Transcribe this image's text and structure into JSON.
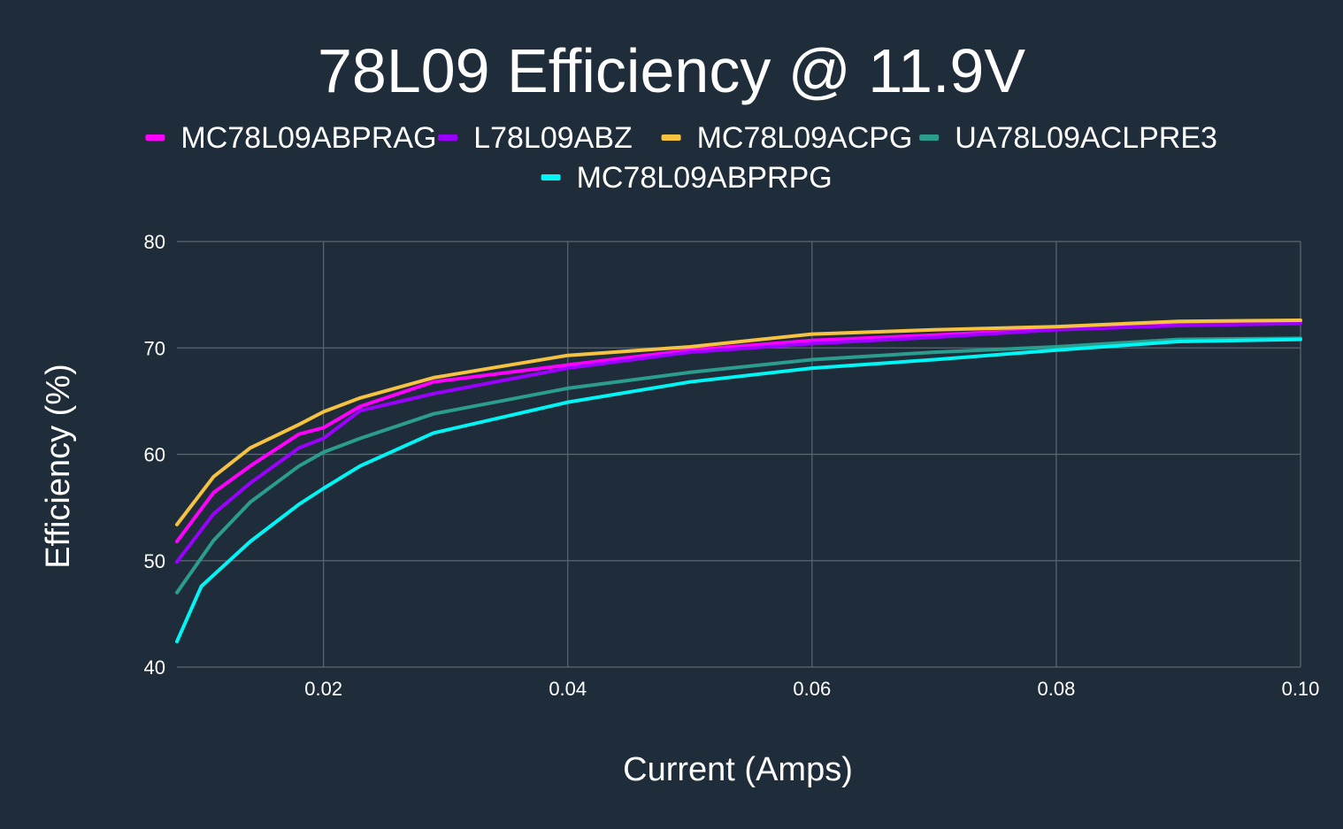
{
  "chart_data": {
    "type": "line",
    "title": "78L09 Efficiency @ 11.9V",
    "xlabel": "Current (Amps)",
    "ylabel": "Efficiency (%)",
    "xlim": [
      0.008,
      0.1
    ],
    "ylim": [
      40,
      80
    ],
    "x_ticks": [
      0.02,
      0.04,
      0.06,
      0.08,
      0.1
    ],
    "x_tick_labels": [
      "0.02",
      "0.04",
      "0.06",
      "0.08",
      "0.10"
    ],
    "y_ticks": [
      40,
      50,
      60,
      70,
      80
    ],
    "y_tick_labels": [
      "40",
      "50",
      "60",
      "70",
      "80"
    ],
    "grid": true,
    "legend_position": "top",
    "background": "#1f2d3a",
    "grid_color": "#5d6770",
    "series": [
      {
        "name": "MC78L09ABPRAG",
        "color": "#ff00ff",
        "x": [
          0.008,
          0.011,
          0.014,
          0.018,
          0.02,
          0.023,
          0.029,
          0.04,
          0.05,
          0.06,
          0.07,
          0.08,
          0.09,
          0.1
        ],
        "y": [
          51.8,
          56.4,
          58.9,
          61.9,
          62.5,
          64.5,
          66.8,
          68.4,
          69.8,
          70.7,
          71.2,
          71.8,
          72.3,
          72.4
        ]
      },
      {
        "name": "L78L09ABZ",
        "color": "#9b00ff",
        "x": [
          0.008,
          0.011,
          0.014,
          0.018,
          0.02,
          0.023,
          0.029,
          0.04,
          0.05,
          0.06,
          0.07,
          0.08,
          0.09,
          0.1
        ],
        "y": [
          49.9,
          54.4,
          57.3,
          60.6,
          61.5,
          64.1,
          65.7,
          68.1,
          69.6,
          70.4,
          71.0,
          71.7,
          72.1,
          72.3
        ]
      },
      {
        "name": "MC78L09ACPG",
        "color": "#f5c242",
        "x": [
          0.008,
          0.011,
          0.014,
          0.018,
          0.02,
          0.023,
          0.029,
          0.04,
          0.05,
          0.06,
          0.07,
          0.08,
          0.09,
          0.1
        ],
        "y": [
          53.4,
          57.9,
          60.6,
          62.8,
          64.0,
          65.3,
          67.2,
          69.3,
          70.1,
          71.3,
          71.7,
          72.0,
          72.5,
          72.6
        ]
      },
      {
        "name": "UA78L09ACLPRE3",
        "color": "#2a9d8f",
        "x": [
          0.008,
          0.011,
          0.014,
          0.018,
          0.02,
          0.023,
          0.029,
          0.04,
          0.05,
          0.06,
          0.07,
          0.08,
          0.09,
          0.1
        ],
        "y": [
          47.0,
          51.9,
          55.5,
          58.9,
          60.2,
          61.5,
          63.8,
          66.2,
          67.7,
          68.9,
          69.6,
          70.1,
          70.8,
          70.9
        ]
      },
      {
        "name": "MC78L09ABPRPG",
        "color": "#00f5f5",
        "x": [
          0.008,
          0.01,
          0.014,
          0.018,
          0.02,
          0.023,
          0.029,
          0.04,
          0.05,
          0.06,
          0.07,
          0.08,
          0.09,
          0.1
        ],
        "y": [
          42.4,
          47.6,
          51.8,
          55.3,
          56.8,
          58.9,
          62.0,
          64.9,
          66.8,
          68.1,
          68.9,
          69.8,
          70.6,
          70.8
        ]
      }
    ]
  }
}
